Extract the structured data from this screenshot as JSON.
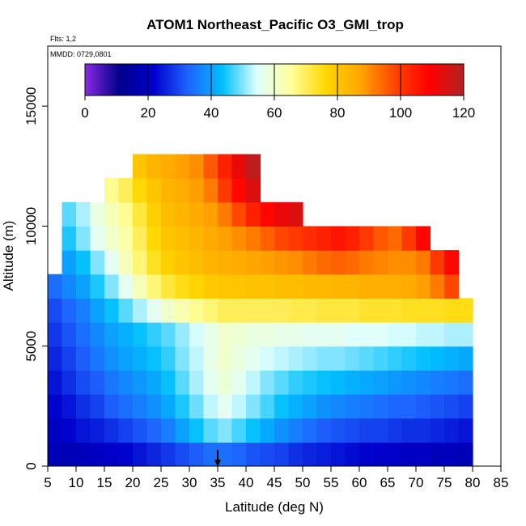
{
  "chart_data": {
    "type": "heatmap",
    "title": "ATOM1 Northeast_Pacific O3_GMI_trop",
    "flights_label": "Flts: 1,2",
    "dates_label": "MMDD: 0729,0801",
    "xlabel": "Latitude (deg N)",
    "ylabel": "Altitude (m)",
    "xlim": [
      5,
      85
    ],
    "ylim": [
      0,
      17500
    ],
    "x_ticks": [
      "5",
      "10",
      "15",
      "20",
      "25",
      "30",
      "35",
      "40",
      "45",
      "50",
      "55",
      "60",
      "65",
      "70",
      "75",
      "80",
      "85"
    ],
    "y_ticks": [
      "0",
      "5000",
      "10000",
      "15000"
    ],
    "colorbar": {
      "range": [
        0,
        120
      ],
      "ticks": [
        "0",
        "20",
        "40",
        "60",
        "80",
        "100",
        "120"
      ],
      "colors": [
        "#8a2be2",
        "#00008b",
        "#0000cd",
        "#1e64ff",
        "#00bfff",
        "#e0ffff",
        "#ffff99",
        "#ffd700",
        "#ffa500",
        "#ff4500",
        "#ff0000",
        "#b22222"
      ]
    },
    "latitude_bins": [
      5,
      7.5,
      10,
      12.5,
      15,
      17.5,
      20,
      22.5,
      25,
      27.5,
      30,
      32.5,
      35,
      37.5,
      40,
      42.5,
      45,
      47.5,
      50,
      52.5,
      55,
      57.5,
      60,
      62.5,
      65,
      67.5,
      70,
      72.5,
      75,
      77.5
    ],
    "altitude_bins": [
      0,
      1000,
      2000,
      3000,
      4000,
      5000,
      6000,
      7000,
      8000,
      9000,
      10000,
      11000,
      12000
    ],
    "ozone_ppbv": [
      [
        18,
        18,
        19,
        20,
        21,
        22,
        24,
        26,
        28,
        30,
        32,
        34,
        34,
        33,
        31,
        30,
        29,
        27,
        26,
        25,
        24,
        23,
        22,
        21,
        21,
        20,
        20,
        19,
        19,
        18
      ],
      [
        20,
        22,
        24,
        25,
        27,
        29,
        31,
        33,
        36,
        40,
        44,
        48,
        50,
        47,
        44,
        41,
        38,
        36,
        34,
        32,
        31,
        30,
        29,
        29,
        28,
        27,
        27,
        26,
        25,
        24
      ],
      [
        22,
        24,
        27,
        29,
        32,
        34,
        36,
        38,
        41,
        45,
        49,
        53,
        56,
        53,
        50,
        47,
        44,
        42,
        40,
        38,
        37,
        36,
        35,
        34,
        33,
        33,
        32,
        31,
        30,
        29
      ],
      [
        24,
        27,
        30,
        32,
        35,
        37,
        39,
        41,
        44,
        48,
        52,
        56,
        59,
        56,
        53,
        50,
        48,
        46,
        45,
        44,
        43,
        42,
        41,
        40,
        39,
        38,
        37,
        36,
        35,
        34
      ],
      [
        26,
        29,
        32,
        35,
        38,
        40,
        42,
        44,
        46,
        50,
        53,
        57,
        60,
        58,
        56,
        54,
        53,
        52,
        51,
        50,
        50,
        49,
        48,
        47,
        46,
        45,
        44,
        43,
        42,
        41
      ],
      [
        28,
        31,
        34,
        37,
        40,
        42,
        44,
        46,
        48,
        51,
        54,
        57,
        60,
        59,
        58,
        58,
        57,
        57,
        56,
        56,
        56,
        55,
        55,
        55,
        54,
        54,
        53,
        53,
        52,
        52
      ],
      [
        30,
        33,
        36,
        40,
        44,
        48,
        52,
        56,
        60,
        63,
        66,
        68,
        70,
        70,
        70,
        70,
        70,
        71,
        71,
        72,
        72,
        72,
        73,
        73,
        73,
        74,
        74,
        74,
        75,
        75
      ],
      [
        34,
        37,
        40,
        45,
        50,
        56,
        62,
        68,
        72,
        75,
        77,
        79,
        80,
        80,
        81,
        81,
        82,
        82,
        83,
        83,
        84,
        84,
        85,
        85,
        85,
        86,
        88,
        92,
        98,
        null
      ],
      [
        null,
        40,
        44,
        50,
        56,
        62,
        68,
        74,
        78,
        80,
        82,
        84,
        85,
        86,
        87,
        88,
        89,
        90,
        92,
        94,
        95,
        94,
        92,
        91,
        90,
        90,
        92,
        100,
        108,
        null
      ],
      [
        null,
        45,
        50,
        56,
        60,
        64,
        70,
        76,
        80,
        82,
        84,
        86,
        88,
        90,
        92,
        95,
        98,
        100,
        102,
        104,
        106,
        104,
        100,
        96,
        94,
        100,
        108,
        null,
        null,
        null
      ],
      [
        null,
        48,
        52,
        58,
        62,
        66,
        72,
        78,
        82,
        84,
        86,
        88,
        92,
        98,
        104,
        108,
        112,
        114,
        null,
        null,
        null,
        null,
        null,
        null,
        null,
        null,
        null,
        null,
        null,
        null
      ],
      [
        null,
        null,
        null,
        null,
        66,
        70,
        76,
        80,
        84,
        86,
        88,
        92,
        100,
        108,
        114,
        null,
        null,
        null,
        null,
        null,
        null,
        null,
        null,
        null,
        null,
        null,
        null,
        null,
        null,
        null
      ],
      [
        null,
        null,
        null,
        null,
        null,
        null,
        80,
        84,
        86,
        88,
        90,
        96,
        104,
        112,
        118,
        null,
        null,
        null,
        null,
        null,
        null,
        null,
        null,
        null,
        null,
        null,
        null,
        null,
        null,
        null
      ]
    ],
    "annotation": "arrow at 35 deg N (surface)"
  }
}
